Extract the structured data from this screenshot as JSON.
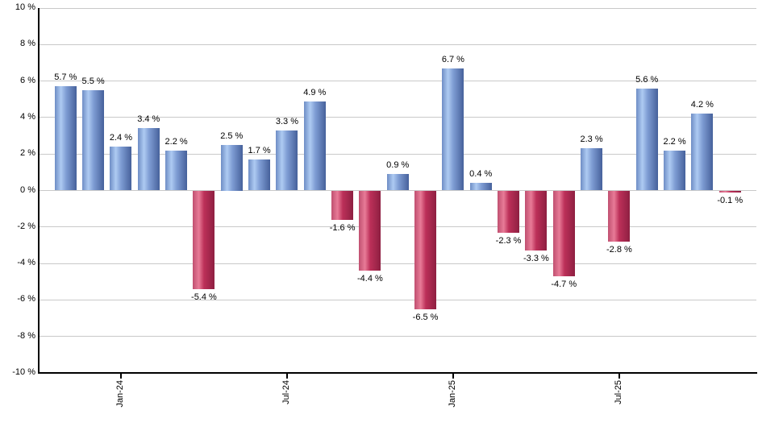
{
  "chart_data": {
    "type": "bar",
    "title": "",
    "xlabel": "",
    "ylabel": "",
    "ylim": [
      -10,
      10
    ],
    "grid": true,
    "values": [
      5.7,
      5.5,
      2.4,
      3.4,
      2.2,
      -5.4,
      2.5,
      1.7,
      3.3,
      4.9,
      -1.6,
      -4.4,
      0.9,
      -6.5,
      6.7,
      0.4,
      -2.3,
      -3.3,
      -4.7,
      2.3,
      -2.8,
      5.6,
      2.2,
      4.2,
      -0.1
    ],
    "bar_labels": [
      "5.7 %",
      "5.5 %",
      "2.4 %",
      "3.4 %",
      "2.2 %",
      "-5.4 %",
      "2.5 %",
      "1.7 %",
      "3.3 %",
      "4.9 %",
      "-1.6 %",
      "-4.4 %",
      "0.9 %",
      "-6.5 %",
      "6.7 %",
      "0.4 %",
      "-2.3 %",
      "-3.3 %",
      "-4.7 %",
      "2.3 %",
      "-2.8 %",
      "5.6 %",
      "2.2 %",
      "4.2 %",
      "-0.1 %"
    ],
    "x_ticks": [
      {
        "label": "Jan-24",
        "bar_index": 2
      },
      {
        "label": "Jul-24",
        "bar_index": 8
      },
      {
        "label": "Jan-25",
        "bar_index": 14
      },
      {
        "label": "Jul-25",
        "bar_index": 20
      }
    ],
    "y_ticks": [
      {
        "label": "10 %",
        "value": 10
      },
      {
        "label": "8 %",
        "value": 8
      },
      {
        "label": "6 %",
        "value": 6
      },
      {
        "label": "4 %",
        "value": 4
      },
      {
        "label": "2 %",
        "value": 2
      },
      {
        "label": "0 %",
        "value": 0
      },
      {
        "label": "-2 %",
        "value": -2
      },
      {
        "label": "-4 %",
        "value": -4
      },
      {
        "label": "-6 %",
        "value": -6
      },
      {
        "label": "-8 %",
        "value": -8
      },
      {
        "label": "-10 %",
        "value": -10
      }
    ],
    "colors": {
      "grid": "#c9c9c9",
      "axis": "#000000",
      "label_text": "#000000",
      "positive": {
        "edge_left": "#6e8dc5",
        "highlight": "#aecbf2",
        "mid": "#7f9dd4",
        "edge_right": "#46619b"
      },
      "negative": {
        "edge_left": "#c04f70",
        "highlight": "#e87b97",
        "mid": "#bc3059",
        "edge_right": "#8e1f41"
      }
    }
  }
}
